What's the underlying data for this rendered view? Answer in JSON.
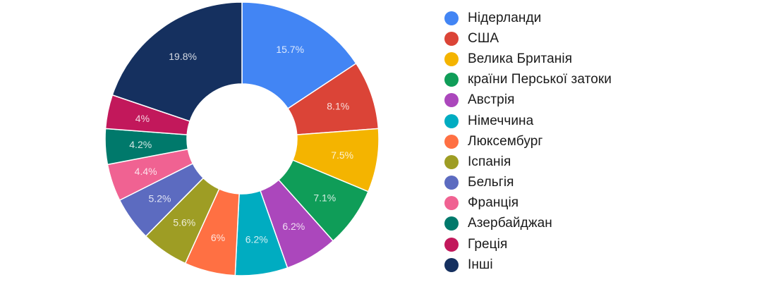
{
  "chart_data": {
    "type": "pie",
    "subtype": "donut",
    "title": "",
    "categories": [
      "Нідерланди",
      "США",
      "Велика Британія",
      "країни Перської затоки",
      "Австрія",
      "Німеччина",
      "Люксембург",
      "Іспанія",
      "Бельгія",
      "Франція",
      "Азербайджан",
      "Греція",
      "Інші"
    ],
    "values": [
      15.7,
      8.1,
      7.5,
      7.1,
      6.2,
      6.2,
      6.0,
      5.6,
      5.2,
      4.4,
      4.2,
      4.0,
      19.8
    ],
    "labels": [
      "15.7%",
      "8.1%",
      "7.5%",
      "7.1%",
      "6.2%",
      "6.2%",
      "6%",
      "5.6%",
      "5.2%",
      "4.4%",
      "4.2%",
      "4%",
      "19.8%"
    ],
    "colors": [
      "#4285f4",
      "#db4437",
      "#f4b400",
      "#0f9d58",
      "#ab47bc",
      "#00acc1",
      "#ff7043",
      "#9e9d24",
      "#5c6bc0",
      "#f06292",
      "#00796b",
      "#c2185b",
      "#15305f"
    ],
    "unit": "%",
    "start_angle_deg": 0,
    "direction": "clockwise",
    "legend_position": "right"
  },
  "legend": {
    "items": [
      {
        "label": "Нідерланди",
        "color": "#4285f4"
      },
      {
        "label": "США",
        "color": "#db4437"
      },
      {
        "label": "Велика Британія",
        "color": "#f4b400"
      },
      {
        "label": "країни Перської затоки",
        "color": "#0f9d58"
      },
      {
        "label": "Австрія",
        "color": "#ab47bc"
      },
      {
        "label": "Німеччина",
        "color": "#00acc1"
      },
      {
        "label": "Люксембург",
        "color": "#ff7043"
      },
      {
        "label": "Іспанія",
        "color": "#9e9d24"
      },
      {
        "label": "Бельгія",
        "color": "#5c6bc0"
      },
      {
        "label": "Франція",
        "color": "#f06292"
      },
      {
        "label": "Азербайджан",
        "color": "#00796b"
      },
      {
        "label": "Греція",
        "color": "#c2185b"
      },
      {
        "label": "Інші",
        "color": "#15305f"
      }
    ]
  }
}
